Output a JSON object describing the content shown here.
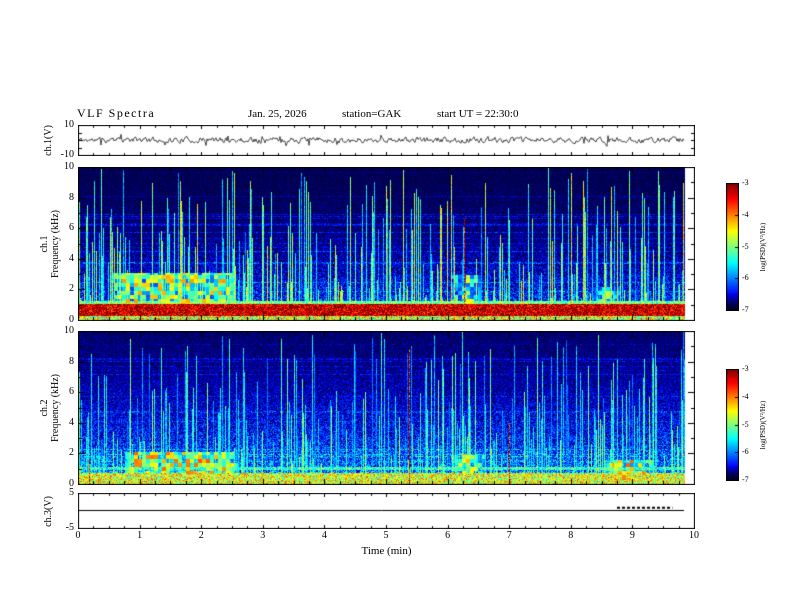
{
  "header": {
    "title": "VLF Spectra",
    "date": "Jan. 25, 2026",
    "station": "station=GAK",
    "start_ut": "start UT =  22:30:0"
  },
  "xaxis": {
    "label": "Time (min)",
    "ticks": [
      0,
      1,
      2,
      3,
      4,
      5,
      6,
      7,
      8,
      9,
      10
    ],
    "range": [
      0,
      10
    ],
    "minor_step": 0.25
  },
  "colorbar": {
    "label": "log(PSD)(V²/Hz)",
    "ticks": [
      -3,
      -4,
      -5,
      -6,
      -7
    ],
    "range": [
      -7,
      -3
    ]
  },
  "chart_data": [
    {
      "id": "ch1_waveform",
      "type": "line",
      "channel": "ch.1",
      "ylabel": "ch.1(V)",
      "ylim": [
        -10,
        10
      ],
      "yticks": [
        -10,
        10
      ],
      "yminor": 5,
      "t_end": 9.83,
      "seed": 11,
      "amplitude": 1.5,
      "spike_rate": 0.04,
      "spike_amp": 4.5,
      "description": "Broadband VLF noise waveform centered on 0 V, typical excursions about ±3 V with occasional spikes to ±6 V over 0–9.8 min"
    },
    {
      "id": "ch1_spectrogram",
      "type": "heatmap",
      "channel": "ch.1",
      "ylabel": "Frequency (kHz)",
      "ylim": [
        0,
        10
      ],
      "yticks": [
        0,
        2,
        4,
        6,
        8,
        10
      ],
      "yminor": 1,
      "t_end": 9.83,
      "seed": 42,
      "base_level": 0.16,
      "base_falloff_khz": 3.0,
      "row_lines": {
        "density": 0.1,
        "boost": 0.1
      },
      "bands": [
        {
          "f0": 0.3,
          "f1": 1.05,
          "level": 0.93,
          "var": 0.16
        },
        {
          "f0": 0.0,
          "f1": 0.3,
          "level": 0.58,
          "var": 0.25
        },
        {
          "f0": 1.05,
          "f1": 1.3,
          "level": 0.48,
          "var": 0.15
        }
      ],
      "blobs": [
        {
          "t0": 0.55,
          "t1": 2.55,
          "f0": 1.0,
          "f1": 3.1,
          "level": 0.5
        },
        {
          "t0": 6.05,
          "t1": 6.55,
          "f0": 0.8,
          "f1": 3.0,
          "level": 0.45
        },
        {
          "t0": 8.35,
          "t1": 8.8,
          "f0": 0.8,
          "f1": 2.2,
          "level": 0.4
        }
      ],
      "streaks": {
        "density": 0.6,
        "intensity": 0.5,
        "red_fraction": 0.025
      },
      "description": "PSD from -7 to -3 log(V2/Hz); intense red band near 0.5–1 kHz for the whole record, dense vertical sferic streaks reaching up to 10 kHz, enhanced 1–3 kHz green activity near 0.5–2.5, 6.2 and 8.5 min, dark background above ~4 kHz"
    },
    {
      "id": "ch2_spectrogram",
      "type": "heatmap",
      "channel": "ch.2",
      "ylabel": "Frequency (kHz)",
      "ylim": [
        0,
        10
      ],
      "yticks": [
        0,
        2,
        4,
        6,
        8,
        10
      ],
      "yminor": 1,
      "t_end": 9.83,
      "seed": 77,
      "base_level": 0.2,
      "base_falloff_khz": 4.5,
      "row_lines": {
        "density": 0.12,
        "boost": 0.08
      },
      "bands": [
        {
          "f0": 0.0,
          "f1": 0.75,
          "level": 0.6,
          "var": 0.2
        },
        {
          "f0": 0.95,
          "f1": 1.15,
          "level": 0.42,
          "var": 0.15
        }
      ],
      "blobs": [
        {
          "t0": 0.75,
          "t1": 2.6,
          "f0": 0.7,
          "f1": 2.1,
          "level": 0.55
        },
        {
          "t0": 6.05,
          "t1": 6.6,
          "f0": 0.6,
          "f1": 2.0,
          "level": 0.5
        },
        {
          "t0": 8.55,
          "t1": 9.35,
          "f0": 0.3,
          "f1": 1.6,
          "level": 0.55
        }
      ],
      "streaks": {
        "density": 0.55,
        "intensity": 0.42,
        "red_fraction": 0.01
      },
      "description": "Blue broadband speckle with green-yellow band below ~0.8 kHz, vertical sferic streaks, green patches near 1–2.5, 6.3 and 9 min"
    },
    {
      "id": "ch3_waveform",
      "type": "line",
      "channel": "ch.3",
      "ylabel": "ch.3(V)",
      "ylim": [
        -5,
        5
      ],
      "yticks": [
        -5,
        5
      ],
      "t_end": 9.83,
      "baseline": 0,
      "pulse": {
        "t0": 8.75,
        "t1": 9.65,
        "level": 0.8
      },
      "description": "Flat trace at 0 V with a short dashed pulse train near 8.8–9.7 min"
    }
  ]
}
